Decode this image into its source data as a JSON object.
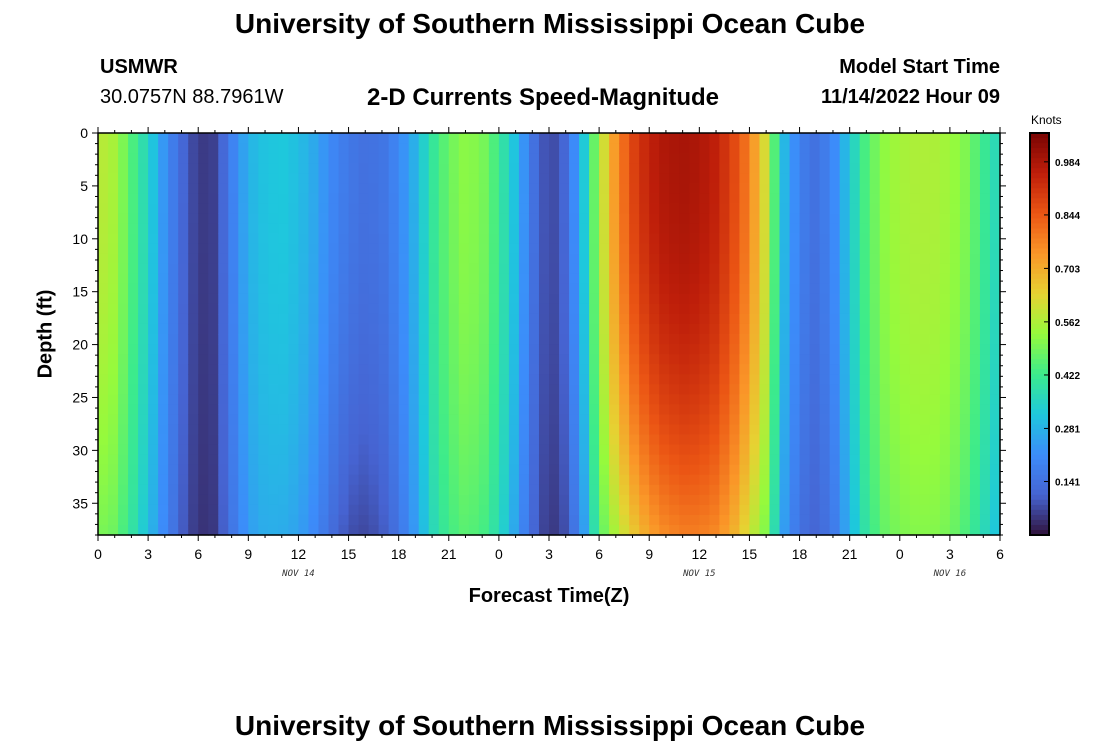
{
  "header": {
    "title": "University of Southern Mississippi Ocean Cube",
    "station": "USMWR",
    "coords": "30.0757N  88.7961W",
    "plot_title": "2-D Currents Speed-Magnitude",
    "model_label": "Model Start Time",
    "model_time": "11/14/2022 Hour 09"
  },
  "footer": {
    "title": "University of Southern Mississippi Ocean Cube"
  },
  "chart_data": {
    "type": "heatmap",
    "title": "2-D Currents Speed-Magnitude",
    "xlabel": "Forecast Time(Z)",
    "ylabel": "Depth (ft)",
    "x_ticks": [
      "0",
      "3",
      "6",
      "9",
      "12",
      "15",
      "18",
      "21",
      "0",
      "3",
      "6",
      "9",
      "12",
      "15",
      "18",
      "21",
      "0",
      "3",
      "6"
    ],
    "y_ticks": [
      "0",
      "5",
      "10",
      "15",
      "20",
      "25",
      "30",
      "35"
    ],
    "ylim": [
      0,
      38
    ],
    "xlim_hours": [
      0,
      54
    ],
    "y_reversed": true,
    "day_labels": [
      {
        "text": "NOV 14",
        "hour": 12
      },
      {
        "text": "NOV 15",
        "hour": 36
      },
      {
        "text": "NOV 16",
        "hour": 51
      }
    ],
    "colorbar": {
      "title": "Knots",
      "ticks": [
        "0.984",
        "0.844",
        "0.703",
        "0.562",
        "0.422",
        "0.281",
        "0.141"
      ],
      "tick_values": [
        0.984,
        0.844,
        0.703,
        0.562,
        0.422,
        0.281,
        0.141
      ],
      "range": [
        0.0,
        1.06
      ],
      "colormap": "turbo"
    },
    "speed_profile": {
      "description_hours": [
        0,
        1,
        2,
        3,
        4,
        5,
        6,
        7,
        8,
        9,
        10,
        11,
        12,
        13,
        14,
        15,
        16,
        17,
        18,
        19,
        20,
        21,
        22,
        23,
        24,
        25,
        26,
        27,
        28,
        29,
        30,
        31,
        32,
        33,
        34,
        35,
        36,
        37,
        38,
        39,
        40,
        41,
        42,
        43,
        44,
        45,
        46,
        47,
        48,
        49,
        50,
        51,
        52,
        53,
        54
      ],
      "surface": [
        0.58,
        0.55,
        0.45,
        0.35,
        0.22,
        0.12,
        0.05,
        0.06,
        0.18,
        0.28,
        0.31,
        0.32,
        0.3,
        0.26,
        0.2,
        0.16,
        0.14,
        0.15,
        0.2,
        0.28,
        0.4,
        0.48,
        0.52,
        0.5,
        0.42,
        0.3,
        0.15,
        0.06,
        0.12,
        0.3,
        0.55,
        0.75,
        0.88,
        0.95,
        0.98,
        0.99,
        0.98,
        0.95,
        0.88,
        0.78,
        0.6,
        0.3,
        0.18,
        0.14,
        0.2,
        0.32,
        0.45,
        0.52,
        0.55,
        0.56,
        0.56,
        0.54,
        0.5,
        0.42,
        0.35
      ],
      "bottom": [
        0.5,
        0.48,
        0.4,
        0.3,
        0.2,
        0.1,
        0.04,
        0.05,
        0.15,
        0.24,
        0.27,
        0.27,
        0.25,
        0.2,
        0.13,
        0.08,
        0.07,
        0.09,
        0.15,
        0.24,
        0.36,
        0.43,
        0.46,
        0.44,
        0.37,
        0.25,
        0.12,
        0.04,
        0.08,
        0.22,
        0.45,
        0.56,
        0.65,
        0.72,
        0.76,
        0.78,
        0.78,
        0.76,
        0.7,
        0.6,
        0.5,
        0.25,
        0.14,
        0.11,
        0.16,
        0.28,
        0.4,
        0.47,
        0.5,
        0.51,
        0.51,
        0.49,
        0.44,
        0.37,
        0.3
      ]
    }
  }
}
